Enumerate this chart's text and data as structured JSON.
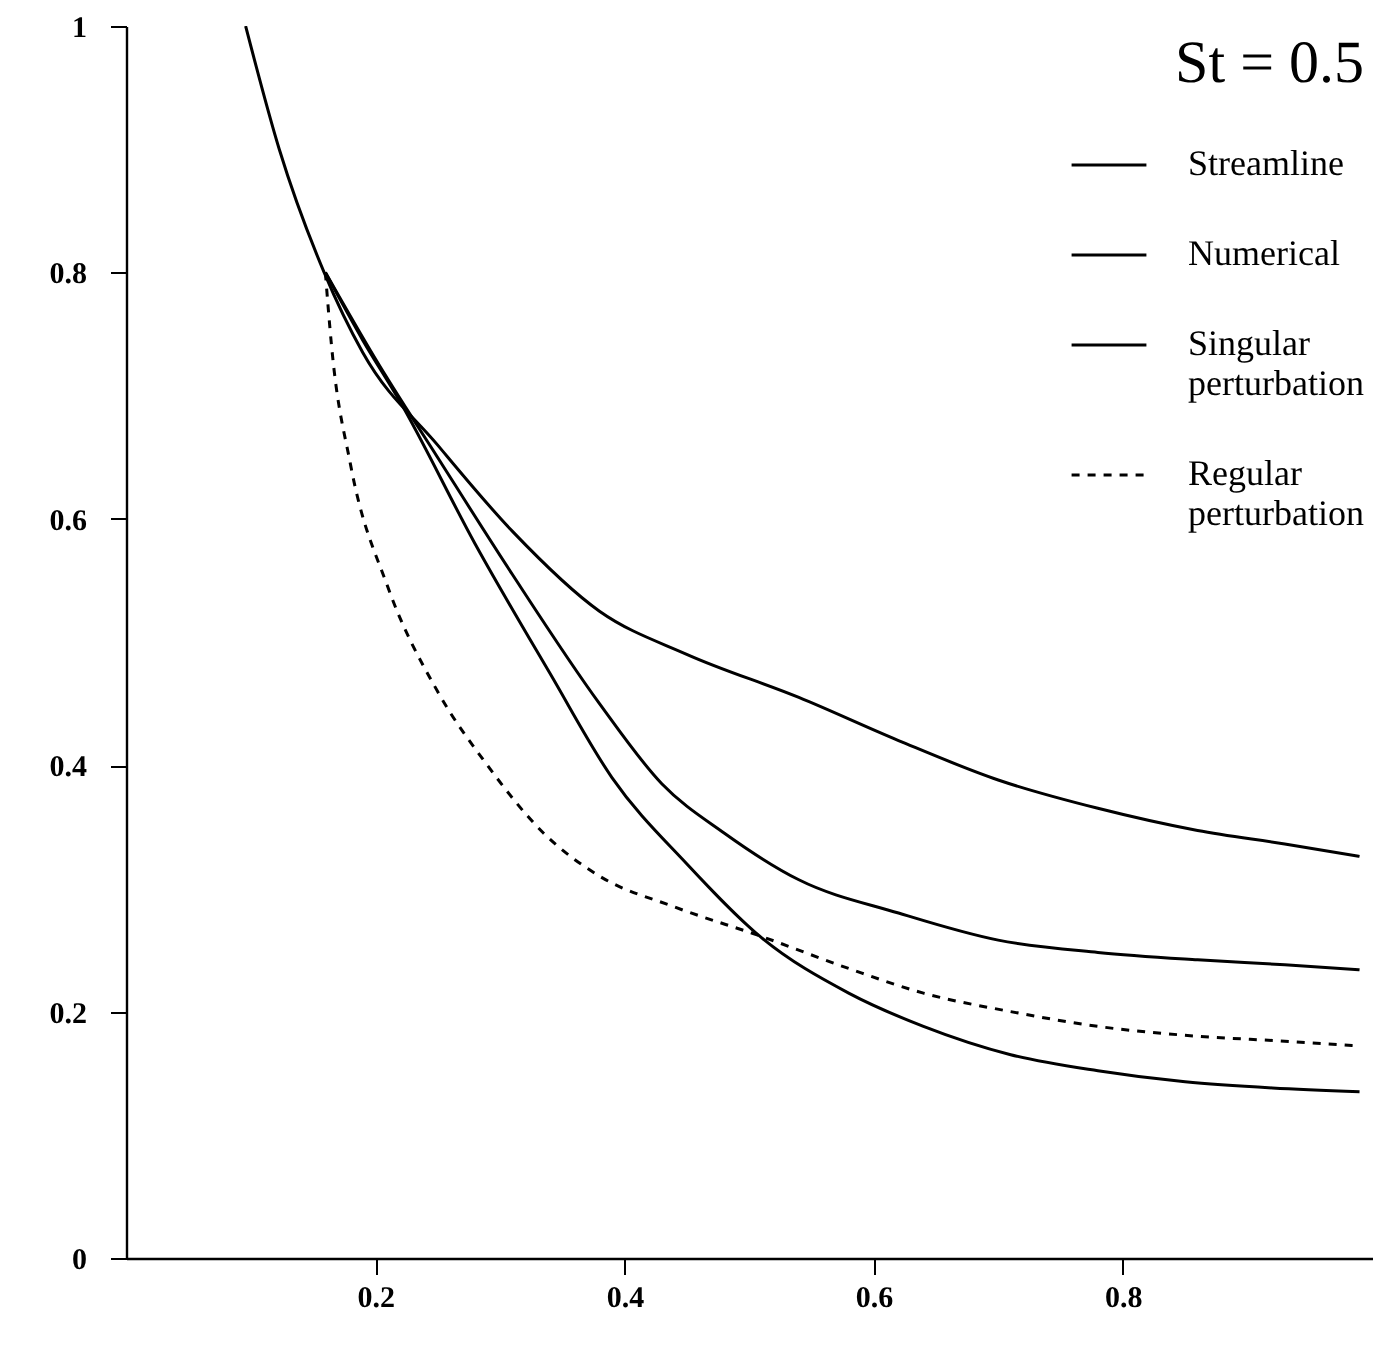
{
  "chart_data": {
    "type": "line",
    "legend_title": "St = 0.5",
    "legend": "top right",
    "xlim": [
      0,
      1
    ],
    "ylim": [
      0,
      1
    ],
    "xticks": [
      0.2,
      0.4,
      0.6,
      0.8
    ],
    "yticks": [
      0,
      0.2,
      0.4,
      0.6,
      0.8,
      1
    ],
    "grid": false,
    "series": [
      {
        "name": "Streamline",
        "color": "#000000",
        "line_style": "solid",
        "x": [
          0.096,
          0.123,
          0.159,
          0.19,
          0.25,
          0.31,
          0.38,
          0.45,
          0.54,
          0.62,
          0.7,
          0.78,
          0.86,
          0.93,
          0.99
        ],
        "values": [
          1.0,
          0.9,
          0.8,
          0.735,
          0.66,
          0.59,
          0.525,
          0.49,
          0.455,
          0.42,
          0.388,
          0.365,
          0.347,
          0.336,
          0.326
        ]
      },
      {
        "name": "Numerical",
        "color": "#000000",
        "line_style": "solid",
        "x": [
          0.16,
          0.19,
          0.22,
          0.28,
          0.34,
          0.39,
          0.45,
          0.51,
          0.58,
          0.64,
          0.71,
          0.78,
          0.85,
          0.92,
          0.99
        ],
        "values": [
          0.8,
          0.745,
          0.695,
          0.58,
          0.475,
          0.39,
          0.32,
          0.26,
          0.215,
          0.188,
          0.165,
          0.152,
          0.143,
          0.138,
          0.135
        ]
      },
      {
        "name": "Singular perturbation",
        "color": "#000000",
        "line_style": "solid",
        "x": [
          0.16,
          0.2,
          0.25,
          0.31,
          0.38,
          0.43,
          0.48,
          0.54,
          0.62,
          0.7,
          0.78,
          0.86,
          0.93,
          0.99
        ],
        "values": [
          0.8,
          0.73,
          0.65,
          0.555,
          0.45,
          0.385,
          0.345,
          0.307,
          0.28,
          0.258,
          0.248,
          0.242,
          0.238,
          0.234
        ]
      },
      {
        "name": "Regular perturbation",
        "color": "#000000",
        "line_style": "dashed",
        "x": [
          0.16,
          0.165,
          0.18,
          0.21,
          0.25,
          0.29,
          0.335,
          0.38,
          0.44,
          0.51,
          0.58,
          0.64,
          0.71,
          0.78,
          0.86,
          0.93,
          0.99
        ],
        "values": [
          0.8,
          0.74,
          0.645,
          0.545,
          0.46,
          0.4,
          0.345,
          0.31,
          0.285,
          0.261,
          0.235,
          0.215,
          0.2,
          0.188,
          0.18,
          0.176,
          0.172
        ]
      }
    ]
  }
}
